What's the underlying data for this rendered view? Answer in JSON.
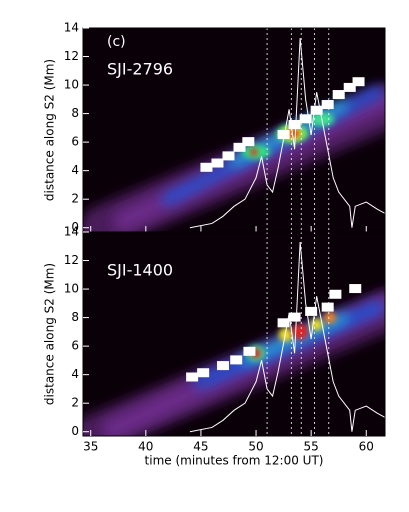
{
  "chart_data": [
    {
      "type": "line",
      "annotation": "(c)",
      "label": "SJI-2796",
      "ylabel": "distance along S2 (Mm)",
      "xlim": [
        34.3,
        61.7
      ],
      "ylim": [
        -0.3,
        14
      ],
      "xticks": [
        35,
        40,
        45,
        50,
        55,
        60
      ],
      "yticks": [
        0,
        2,
        4,
        6,
        8,
        10,
        12,
        14
      ],
      "xticklabels": false,
      "vlines": [
        51,
        53.2,
        54.1,
        55.3,
        56.6
      ],
      "series": [
        {
          "color": "#ffffff",
          "x": [
            44,
            46,
            47,
            48,
            49,
            50,
            50.5,
            51,
            51.5,
            52,
            52.5,
            53,
            53.5,
            54,
            54.5,
            55,
            55.5,
            56,
            56.5,
            57,
            57.5,
            58,
            58.5,
            58.7,
            59,
            60,
            61,
            61.7
          ],
          "values": [
            0,
            0.3,
            0.8,
            1.5,
            2,
            3.5,
            5,
            3,
            2.5,
            4.2,
            6.2,
            8.3,
            5.5,
            13.3,
            9,
            6.5,
            9.5,
            7.5,
            5.5,
            3.5,
            2.5,
            2,
            1.5,
            0,
            1.5,
            1.8,
            1.3,
            1.0
          ]
        }
      ]
    },
    {
      "type": "line",
      "label": "SJI-1400",
      "ylabel": "distance along S2 (Mm)",
      "xlabel": "time (minutes from 12:00 UT)",
      "xlim": [
        34.3,
        61.7
      ],
      "ylim": [
        -0.3,
        14
      ],
      "xticks": [
        35,
        40,
        45,
        50,
        55,
        60
      ],
      "yticks": [
        0,
        2,
        4,
        6,
        8,
        10,
        12,
        14
      ],
      "xticklabels": true,
      "vlines": [
        51,
        53.2,
        54.1,
        55.3,
        56.6
      ],
      "series": [
        {
          "color": "#ffffff",
          "x": [
            44,
            46,
            47,
            48,
            49,
            50,
            50.5,
            51,
            51.5,
            52,
            52.5,
            53,
            53.5,
            54,
            54.5,
            55,
            55.5,
            56,
            56.5,
            57,
            57.5,
            58,
            58.5,
            58.7,
            59,
            60,
            61,
            61.7
          ],
          "values": [
            0,
            0.3,
            0.8,
            1.5,
            2,
            3.5,
            5,
            3,
            2.5,
            4.2,
            6.2,
            8.3,
            5.5,
            13.3,
            9,
            6.5,
            9.5,
            7.5,
            5.5,
            3.5,
            2.5,
            2,
            1.5,
            0,
            1.5,
            1.8,
            1.3,
            1.0
          ]
        }
      ]
    }
  ]
}
